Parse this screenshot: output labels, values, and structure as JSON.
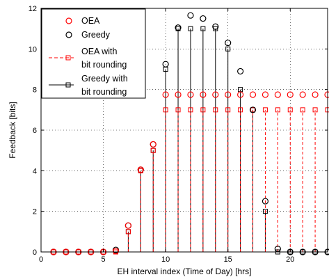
{
  "chart_data": {
    "type": "scatter",
    "title": "",
    "xlabel": "EH interval index (Time of Day) [hrs]",
    "ylabel": "Feedback [bits]",
    "xlim": [
      0,
      23
    ],
    "ylim": [
      0,
      12
    ],
    "xticks": [
      0,
      5,
      10,
      15,
      20
    ],
    "yticks": [
      0,
      2,
      4,
      6,
      8,
      10,
      12
    ],
    "grid": true,
    "legend_position": "top-left",
    "x": [
      1,
      2,
      3,
      4,
      5,
      6,
      7,
      8,
      9,
      10,
      11,
      12,
      13,
      14,
      15,
      16,
      17,
      18,
      19,
      20,
      21,
      22,
      23
    ],
    "series": [
      {
        "name": "OEA",
        "style": "circle-markers",
        "color": "#ff0000",
        "values": [
          0,
          0,
          0,
          0,
          0,
          0.05,
          1.3,
          4.05,
          5.3,
          7.75,
          7.75,
          7.75,
          7.75,
          7.75,
          7.75,
          7.75,
          7.75,
          7.75,
          7.75,
          7.75,
          7.75,
          7.75,
          7.75
        ]
      },
      {
        "name": "Greedy",
        "style": "circle-markers",
        "color": "#000000",
        "values": [
          0,
          0,
          0,
          0,
          0,
          0.1,
          1.3,
          4.05,
          5.3,
          9.25,
          11.05,
          11.65,
          11.5,
          11.1,
          10.3,
          8.9,
          7.0,
          2.5,
          0.15,
          0,
          0,
          0,
          0
        ]
      },
      {
        "name": "OEA with bit rounding",
        "style": "dashed-stem-square",
        "color": "#ff0000",
        "values": [
          0,
          0,
          0,
          0,
          0,
          0,
          1,
          4,
          5,
          7,
          7,
          7,
          7,
          7,
          7,
          7,
          7,
          7,
          7,
          7,
          7,
          7,
          7
        ]
      },
      {
        "name": "Greedy with bit rounding",
        "style": "solid-stem-square",
        "color": "#000000",
        "values": [
          0,
          0,
          0,
          0,
          0,
          0,
          1,
          4,
          5,
          9,
          11,
          11,
          11,
          11,
          10,
          8,
          7,
          2,
          0,
          0,
          0,
          0,
          0
        ]
      }
    ]
  },
  "legend": {
    "entry_1": "OEA",
    "entry_2": "Greedy",
    "entry_3_line1": "OEA with",
    "entry_3_line2": "bit rounding",
    "entry_4_line1": "Greedy with",
    "entry_4_line2": "bit rounding"
  }
}
